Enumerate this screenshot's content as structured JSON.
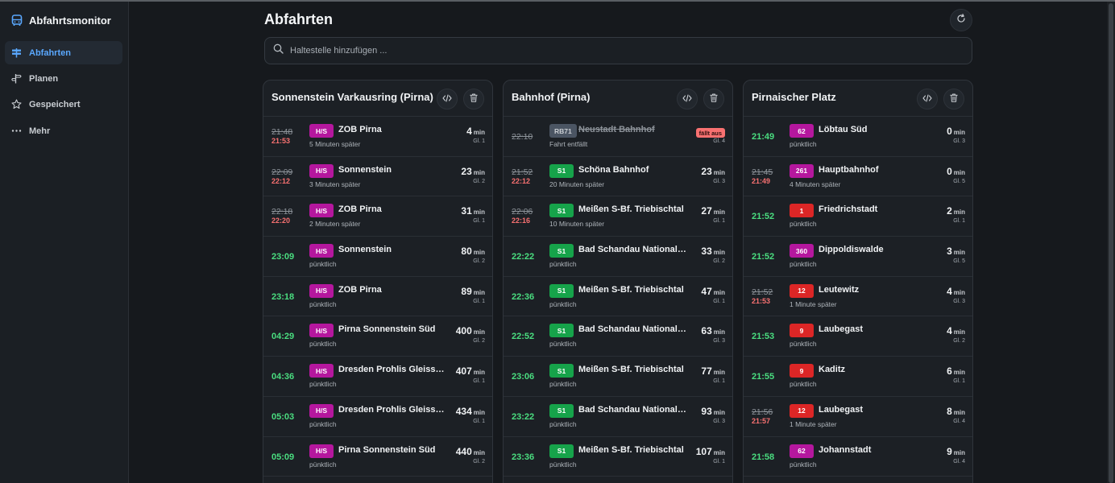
{
  "app": {
    "title": "Abfahrtsmonitor"
  },
  "sidebar": {
    "items": [
      {
        "label": "Abfahrten",
        "icon": "signpost-icon",
        "active": true
      },
      {
        "label": "Planen",
        "icon": "directions-icon"
      },
      {
        "label": "Gespeichert",
        "icon": "star-icon"
      },
      {
        "label": "Mehr",
        "icon": "ellipsis-icon"
      }
    ]
  },
  "header": {
    "title": "Abfahrten"
  },
  "search": {
    "placeholder": "Haltestelle hinzufügen ..."
  },
  "colors": {
    "accent": "#5aa8ff",
    "ontime": "#4ade80",
    "delay": "#f87171",
    "line_hs": "#b5179e",
    "line_s": "#16a34a",
    "line_rb": "#4b5563",
    "line_red": "#dc2626"
  },
  "stations": [
    {
      "name": "Sonnenstein Varkausring (Pirna)",
      "departures": [
        {
          "planned": "21:48",
          "real": "21:53",
          "line": "H/S",
          "color": "#b5179e",
          "destination": "ZOB Pirna",
          "status": "5 Minuten später",
          "minutes": "4",
          "track": "Gl. 1"
        },
        {
          "planned": "22:09",
          "real": "22:12",
          "line": "H/S",
          "color": "#b5179e",
          "destination": "Sonnenstein",
          "status": "3 Minuten später",
          "minutes": "23",
          "track": "Gl. 2"
        },
        {
          "planned": "22:18",
          "real": "22:20",
          "line": "H/S",
          "color": "#b5179e",
          "destination": "ZOB Pirna",
          "status": "2 Minuten später",
          "minutes": "31",
          "track": "Gl. 1"
        },
        {
          "time": "23:09",
          "line": "H/S",
          "color": "#b5179e",
          "destination": "Sonnenstein",
          "status": "pünktlich",
          "minutes": "80",
          "track": "Gl. 2"
        },
        {
          "time": "23:18",
          "line": "H/S",
          "color": "#b5179e",
          "destination": "ZOB Pirna",
          "status": "pünktlich",
          "minutes": "89",
          "track": "Gl. 1"
        },
        {
          "time": "04:29",
          "line": "H/S",
          "color": "#b5179e",
          "destination": "Pirna Sonnenstein Süd",
          "status": "pünktlich",
          "minutes": "400",
          "track": "Gl. 2"
        },
        {
          "time": "04:36",
          "line": "H/S",
          "color": "#b5179e",
          "destination": "Dresden Prohlis Gleisschleife",
          "status": "pünktlich",
          "minutes": "407",
          "track": "Gl. 1"
        },
        {
          "time": "05:03",
          "line": "H/S",
          "color": "#b5179e",
          "destination": "Dresden Prohlis Gleisschleife",
          "status": "pünktlich",
          "minutes": "434",
          "track": "Gl. 1"
        },
        {
          "time": "05:09",
          "line": "H/S",
          "color": "#b5179e",
          "destination": "Pirna Sonnenstein Süd",
          "status": "pünktlich",
          "minutes": "440",
          "track": "Gl. 2"
        }
      ]
    },
    {
      "name": "Bahnhof (Pirna)",
      "departures": [
        {
          "planned": "22:10",
          "line": "RB71",
          "color": "#4b5563",
          "destination": "Neustadt Bahnhof",
          "cancelled": true,
          "status": "Fahrt entfällt",
          "cancel_label": "fällt aus",
          "track": "Gl. 4"
        },
        {
          "planned": "21:52",
          "real": "22:12",
          "line": "S1",
          "color": "#16a34a",
          "destination": "Schöna Bahnhof",
          "status": "20 Minuten später",
          "minutes": "23",
          "track": "Gl. 3"
        },
        {
          "planned": "22:06",
          "real": "22:16",
          "line": "S1",
          "color": "#16a34a",
          "destination": "Meißen S-Bf. Triebischtal",
          "status": "10 Minuten später",
          "minutes": "27",
          "track": "Gl. 1"
        },
        {
          "time": "22:22",
          "line": "S1",
          "color": "#16a34a",
          "destination": "Bad Schandau Nationalparkbahnhof",
          "status": "pünktlich",
          "minutes": "33",
          "track": "Gl. 2"
        },
        {
          "time": "22:36",
          "line": "S1",
          "color": "#16a34a",
          "destination": "Meißen S-Bf. Triebischtal",
          "status": "pünktlich",
          "minutes": "47",
          "track": "Gl. 1"
        },
        {
          "time": "22:52",
          "line": "S1",
          "color": "#16a34a",
          "destination": "Bad Schandau Nationalparkbahnhof",
          "status": "pünktlich",
          "minutes": "63",
          "track": "Gl. 3"
        },
        {
          "time": "23:06",
          "line": "S1",
          "color": "#16a34a",
          "destination": "Meißen S-Bf. Triebischtal",
          "status": "pünktlich",
          "minutes": "77",
          "track": "Gl. 1"
        },
        {
          "time": "23:22",
          "line": "S1",
          "color": "#16a34a",
          "destination": "Bad Schandau Nationalparkbahnhof",
          "status": "pünktlich",
          "minutes": "93",
          "track": "Gl. 3"
        },
        {
          "time": "23:36",
          "line": "S1",
          "color": "#16a34a",
          "destination": "Meißen S-Bf. Triebischtal",
          "status": "pünktlich",
          "minutes": "107",
          "track": "Gl. 1"
        }
      ]
    },
    {
      "name": "Pirnaischer Platz",
      "departures": [
        {
          "time": "21:49",
          "line": "62",
          "color": "#b5179e",
          "destination": "Löbtau Süd",
          "status": "pünktlich",
          "minutes": "0",
          "track": "Gl. 3"
        },
        {
          "planned": "21:45",
          "real": "21:49",
          "line": "261",
          "color": "#b5179e",
          "destination": "Hauptbahnhof",
          "status": "4 Minuten später",
          "minutes": "0",
          "track": "Gl. 5"
        },
        {
          "time": "21:52",
          "line": "1",
          "color": "#dc2626",
          "destination": "Friedrichstadt",
          "status": "pünktlich",
          "minutes": "2",
          "track": "Gl. 1"
        },
        {
          "time": "21:52",
          "line": "360",
          "color": "#b5179e",
          "destination": "Dippoldiswalde",
          "status": "pünktlich",
          "minutes": "3",
          "track": "Gl. 5"
        },
        {
          "planned": "21:52",
          "real": "21:53",
          "line": "12",
          "color": "#dc2626",
          "destination": "Leutewitz",
          "status": "1 Minute später",
          "minutes": "4",
          "track": "Gl. 3"
        },
        {
          "time": "21:53",
          "line": "9",
          "color": "#dc2626",
          "destination": "Laubegast",
          "status": "pünktlich",
          "minutes": "4",
          "track": "Gl. 2"
        },
        {
          "time": "21:55",
          "line": "9",
          "color": "#dc2626",
          "destination": "Kaditz",
          "status": "pünktlich",
          "minutes": "6",
          "track": "Gl. 1"
        },
        {
          "planned": "21:56",
          "real": "21:57",
          "line": "12",
          "color": "#dc2626",
          "destination": "Laubegast",
          "status": "1 Minute später",
          "minutes": "8",
          "track": "Gl. 4"
        },
        {
          "time": "21:58",
          "line": "62",
          "color": "#b5179e",
          "destination": "Johannstadt",
          "status": "pünktlich",
          "minutes": "9",
          "track": "Gl. 4"
        }
      ]
    }
  ],
  "labels": {
    "min_unit": "min"
  }
}
